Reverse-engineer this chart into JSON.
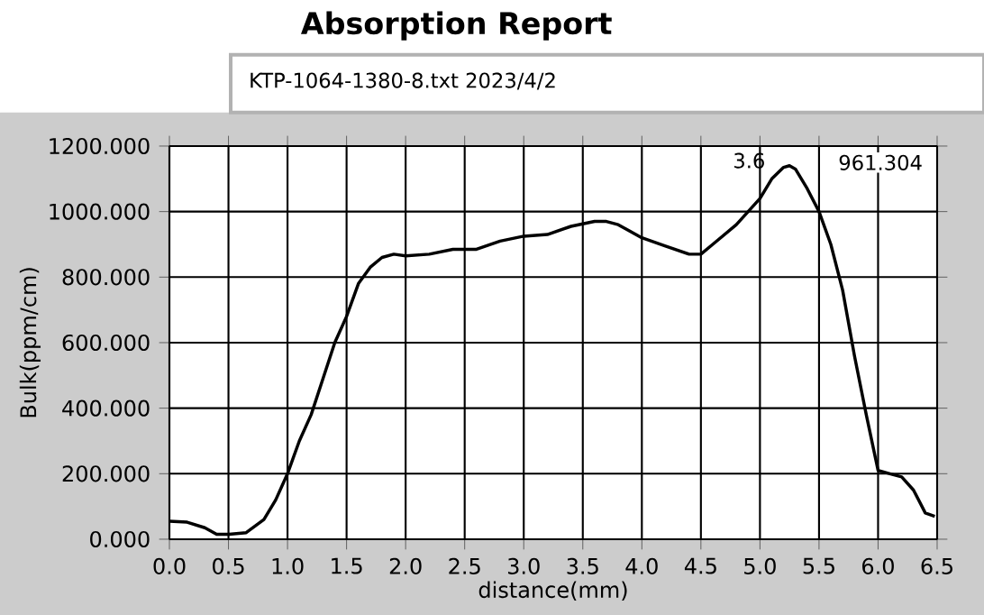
{
  "chart_data": {
    "type": "line",
    "title": "Absorption Report",
    "xlabel": "distance(mm)",
    "ylabel": "Bulk(ppm/cm)",
    "annotations": [
      "KTP-1064-1380-8.txt  2023/4/2",
      "3.6",
      "961.304"
    ],
    "x": [
      0,
      0.15,
      0.3,
      0.4,
      0.5,
      0.65,
      0.8,
      0.9,
      1.0,
      1.1,
      1.2,
      1.3,
      1.4,
      1.5,
      1.6,
      1.7,
      1.8,
      1.9,
      2.0,
      2.2,
      2.4,
      2.6,
      2.8,
      3.0,
      3.2,
      3.4,
      3.6,
      3.7,
      3.8,
      4.0,
      4.2,
      4.4,
      4.5,
      4.6,
      4.8,
      5.0,
      5.1,
      5.2,
      5.25,
      5.3,
      5.4,
      5.5,
      5.6,
      5.7,
      5.8,
      5.9,
      6.0,
      6.1,
      6.2,
      6.3,
      6.4,
      6.48
    ],
    "series": [
      {
        "color": "#000000",
        "values": [
          55,
          52,
          35,
          15,
          15,
          20,
          60,
          120,
          200,
          300,
          380,
          490,
          600,
          680,
          780,
          830,
          860,
          870,
          865,
          870,
          885,
          885,
          910,
          925,
          930,
          955,
          970,
          970,
          960,
          920,
          895,
          870,
          870,
          900,
          960,
          1040,
          1100,
          1135,
          1140,
          1130,
          1070,
          1000,
          900,
          760,
          560,
          380,
          210,
          200,
          190,
          150,
          80,
          70
        ]
      }
    ],
    "xlim": [
      0,
      6.5
    ],
    "ylim": [
      0,
      1200
    ],
    "xticks": [
      {
        "value": 0,
        "label": "0.0"
      },
      {
        "value": 0.5,
        "label": "0.5"
      },
      {
        "value": 1,
        "label": "1.0"
      },
      {
        "value": 1.5,
        "label": "1.5"
      },
      {
        "value": 2,
        "label": "2.0"
      },
      {
        "value": 2.5,
        "label": "2.5"
      },
      {
        "value": 3,
        "label": "3.0"
      },
      {
        "value": 3.5,
        "label": "3.5"
      },
      {
        "value": 4,
        "label": "4.0"
      },
      {
        "value": 4.5,
        "label": "4.5"
      },
      {
        "value": 5,
        "label": "5.0"
      },
      {
        "value": 5.5,
        "label": "5.5"
      },
      {
        "value": 6,
        "label": "6.0"
      },
      {
        "value": 6.5,
        "label": "6.5"
      }
    ],
    "yticks": [
      {
        "value": 0,
        "label": "0.000"
      },
      {
        "value": 200,
        "label": "200.000"
      },
      {
        "value": 400,
        "label": "400.000"
      },
      {
        "value": 600,
        "label": "600.000"
      },
      {
        "value": 800,
        "label": "800.000"
      },
      {
        "value": 1000,
        "label": "1000.000"
      },
      {
        "value": 1200,
        "label": "1200.000"
      }
    ],
    "grid": true,
    "marker": "none",
    "line_style": "solid"
  }
}
